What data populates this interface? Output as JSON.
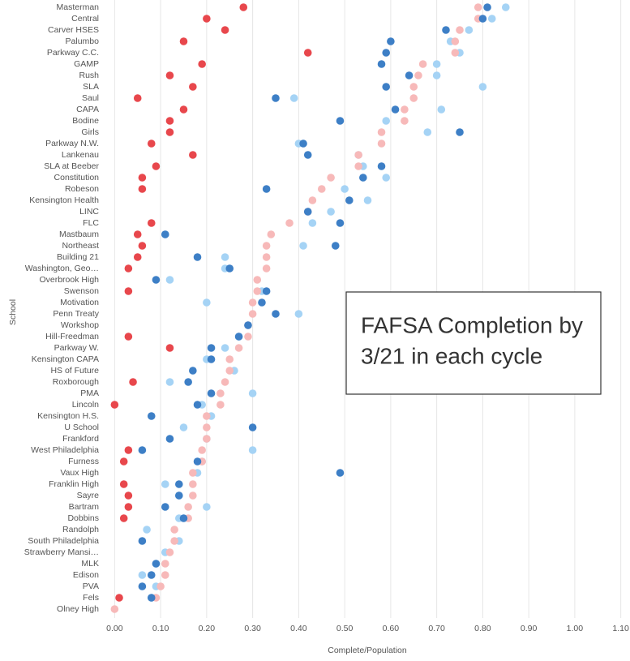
{
  "chart_data": {
    "type": "dot",
    "x_label": "Complete/Population",
    "y_label": "School",
    "annotation": [
      "FAFSA Completion by",
      "3/21 in each cycle"
    ],
    "categories": [
      "Masterman",
      "Central",
      "Carver HSES",
      "Palumbo",
      "Parkway C.C.",
      "GAMP",
      "Rush",
      "SLA",
      "Saul",
      "CAPA",
      "Bodine",
      "Girls",
      "Parkway N.W.",
      "Lankenau",
      "SLA at Beeber",
      "Constitution",
      "Robeson",
      "Kensington Health",
      "LINC",
      "FLC",
      "Mastbaum",
      "Northeast",
      "Building 21",
      "Washington, Geo…",
      "Overbrook High",
      "Swenson",
      "Motivation",
      "Penn Treaty",
      "Workshop",
      "Hill-Freedman",
      "Parkway W.",
      "Kensington CAPA",
      "HS of Future",
      "Roxborough",
      "PMA",
      "Lincoln",
      "Kensington H.S.",
      "U School",
      "Frankford",
      "West Philadelphia",
      "Furness",
      "Vaux High",
      "Franklin High",
      "Sayre",
      "Bartram",
      "Dobbins",
      "Randolph",
      "South Philadelphia",
      "Strawberry Mansi…",
      "MLK",
      "Edison",
      "PVA",
      "Fels",
      "Olney High"
    ],
    "series": [
      {
        "color": "#a5d3f5",
        "values": [
          0.85,
          0.82,
          0.77,
          0.73,
          0.75,
          0.7,
          0.7,
          0.8,
          0.39,
          0.71,
          0.59,
          0.68,
          0.4,
          0.53,
          0.54,
          0.59,
          0.5,
          0.55,
          0.47,
          0.43,
          0.11,
          0.41,
          0.24,
          0.24,
          0.12,
          0.32,
          0.2,
          0.4,
          0.29,
          0.27,
          0.24,
          0.2,
          0.26,
          0.12,
          0.3,
          0.19,
          0.21,
          0.15,
          0.2,
          0.3,
          0.19,
          0.18,
          0.11,
          0.14,
          0.2,
          0.14,
          0.07,
          0.14,
          0.11,
          0.09,
          0.06,
          0.09,
          0.08,
          null
        ]
      },
      {
        "color": "#f7b9b9",
        "values": [
          0.79,
          0.79,
          0.75,
          0.74,
          0.74,
          0.67,
          0.66,
          0.65,
          0.65,
          0.63,
          0.63,
          0.58,
          0.58,
          0.53,
          0.53,
          0.47,
          0.45,
          0.43,
          0.42,
          0.38,
          0.34,
          0.33,
          0.33,
          0.33,
          0.31,
          0.31,
          0.3,
          0.3,
          0.29,
          0.29,
          0.27,
          0.25,
          0.25,
          0.24,
          0.23,
          0.23,
          0.2,
          0.2,
          0.2,
          0.19,
          0.19,
          0.17,
          0.17,
          0.17,
          0.16,
          0.16,
          0.13,
          0.13,
          0.12,
          0.11,
          0.11,
          0.1,
          0.09,
          0.0
        ]
      },
      {
        "color": "#3d7fc6",
        "values": [
          0.81,
          0.8,
          0.72,
          0.6,
          0.59,
          0.58,
          0.64,
          0.59,
          0.35,
          0.61,
          0.49,
          0.75,
          0.41,
          0.42,
          0.58,
          0.54,
          0.33,
          0.51,
          0.42,
          0.49,
          0.11,
          0.48,
          0.18,
          0.25,
          0.09,
          0.33,
          0.32,
          0.35,
          0.29,
          0.27,
          0.21,
          0.21,
          0.17,
          0.16,
          0.21,
          0.18,
          0.08,
          0.3,
          0.12,
          0.06,
          0.18,
          0.49,
          0.14,
          0.14,
          0.11,
          0.15,
          null,
          0.06,
          null,
          0.09,
          0.08,
          0.06,
          0.08,
          null
        ]
      },
      {
        "color": "#e8474c",
        "values": [
          0.28,
          0.2,
          0.24,
          0.15,
          0.42,
          0.19,
          0.12,
          0.17,
          0.05,
          0.15,
          0.12,
          0.12,
          0.08,
          0.17,
          0.09,
          0.06,
          0.06,
          null,
          null,
          0.08,
          0.05,
          0.06,
          0.05,
          0.03,
          null,
          0.03,
          null,
          null,
          null,
          0.03,
          0.12,
          null,
          null,
          0.04,
          null,
          0.0,
          null,
          null,
          null,
          0.03,
          0.02,
          null,
          0.02,
          0.03,
          0.03,
          0.02,
          null,
          null,
          null,
          null,
          null,
          null,
          0.01,
          null
        ]
      }
    ],
    "xlim": [
      -0.02,
      1.12
    ],
    "xticks": [
      {
        "value": 0,
        "label": "0.00"
      },
      {
        "value": 0.1,
        "label": "0.10"
      },
      {
        "value": 0.2,
        "label": "0.20"
      },
      {
        "value": 0.3,
        "label": "0.30"
      },
      {
        "value": 0.4,
        "label": "0.40"
      },
      {
        "value": 0.5,
        "label": "0.50"
      },
      {
        "value": 0.6,
        "label": "0.60"
      },
      {
        "value": 0.7,
        "label": "0.70"
      },
      {
        "value": 0.8,
        "label": "0.80"
      },
      {
        "value": 0.9,
        "label": "0.90"
      },
      {
        "value": 1,
        "label": "1.00"
      },
      {
        "value": 1.1,
        "label": "1.10"
      }
    ],
    "grid": true
  }
}
